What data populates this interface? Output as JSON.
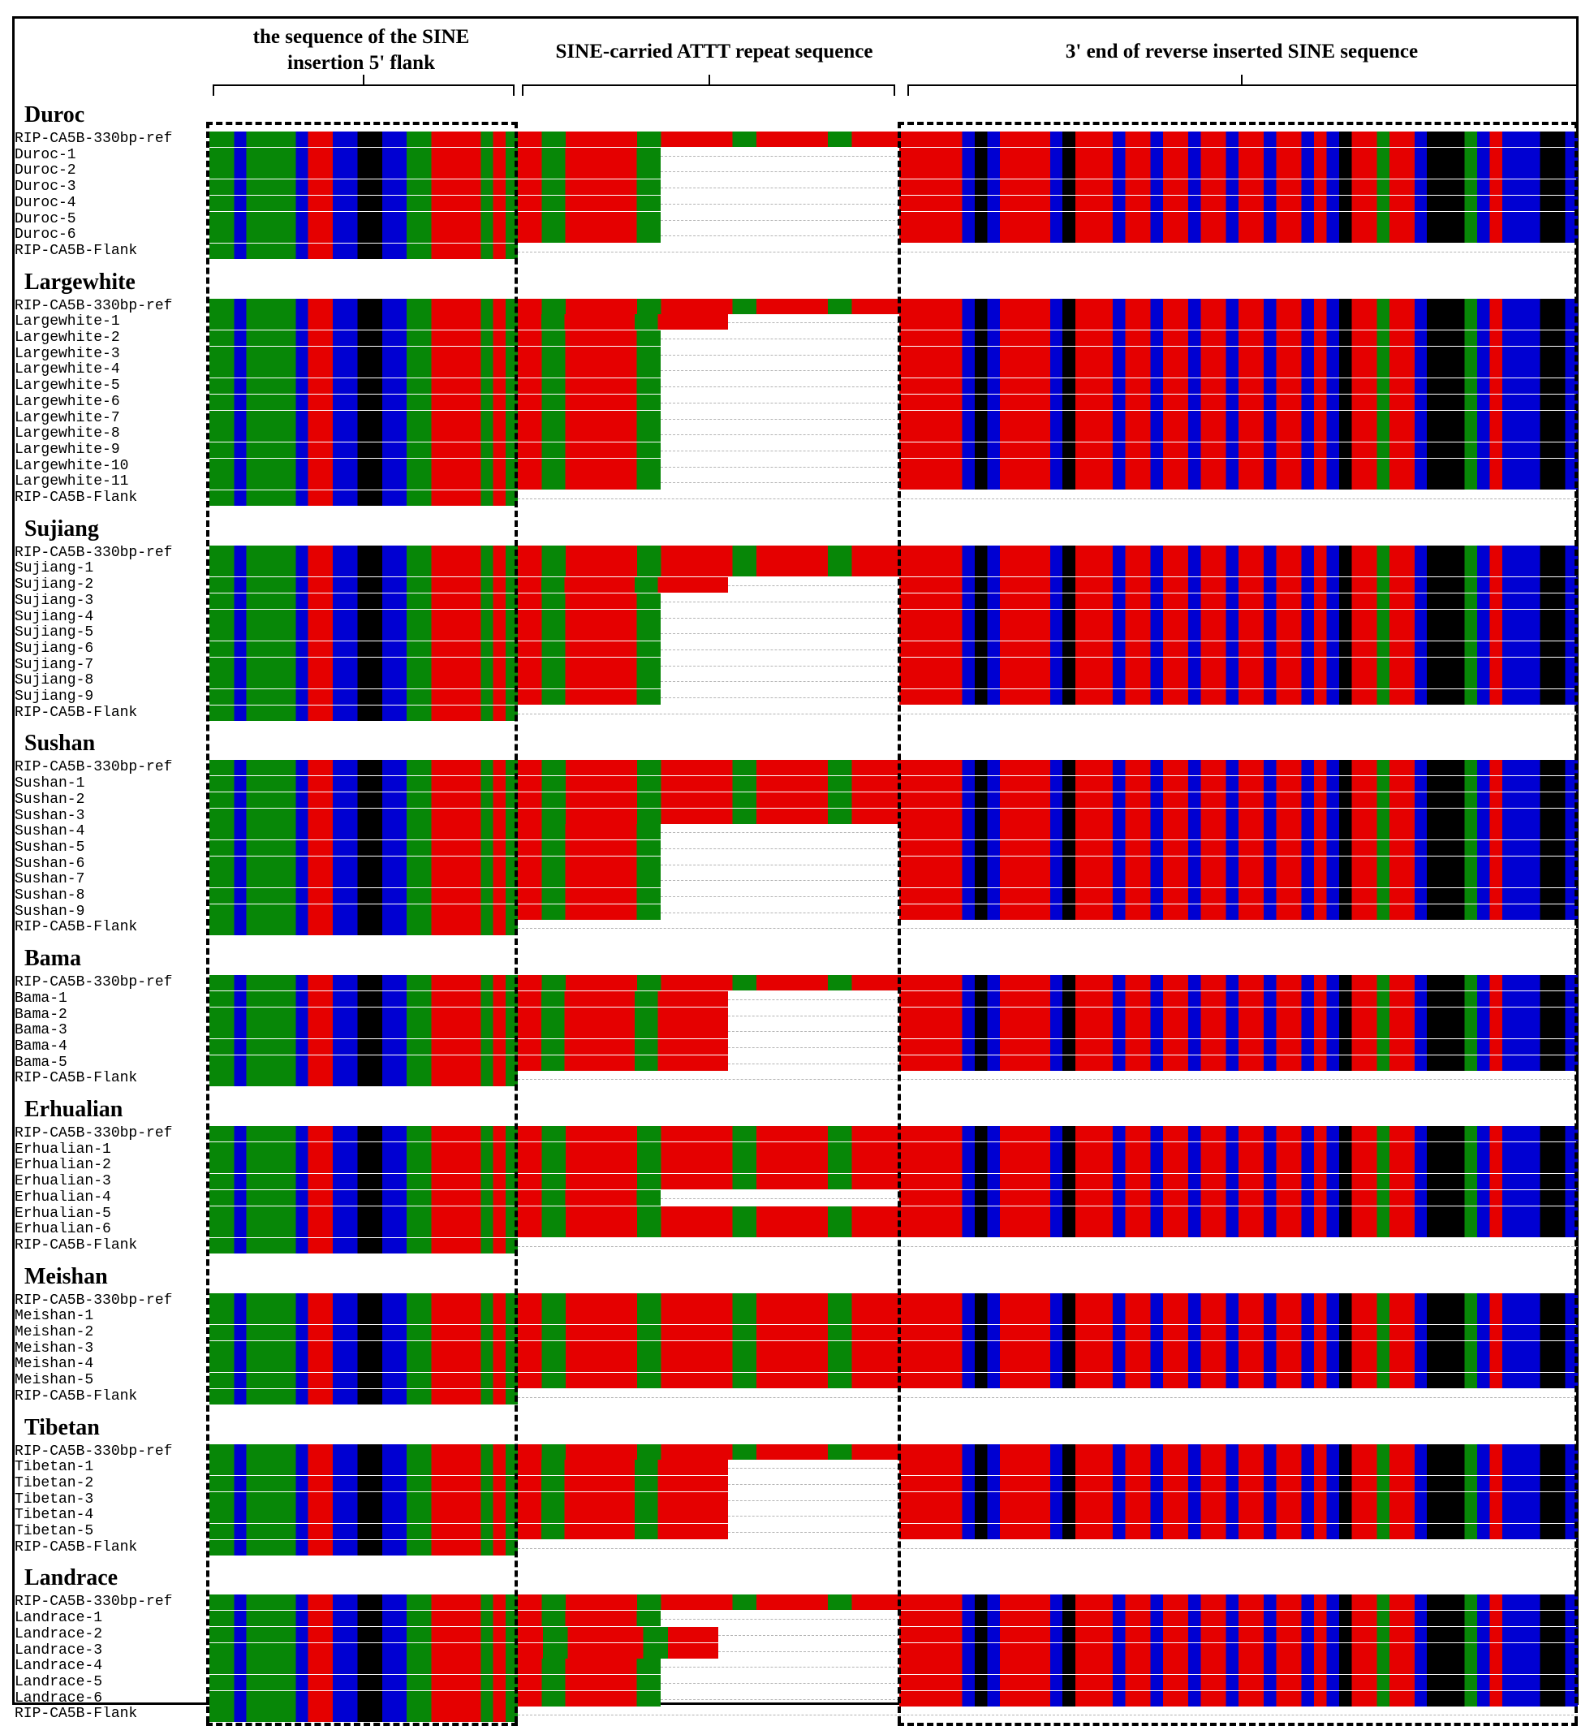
{
  "headers": {
    "flank": "the sequence of the SINE insertion 5' flank",
    "repeat": "SINE-carried ATTT repeat sequence",
    "sine": "3' end of reverse inserted SINE sequence"
  },
  "colors": {
    "A": "#e50000",
    "T": "#e50000",
    "G": "#0000d2",
    "C": "#078707",
    "K": "#000000",
    "gap": "#b4b4b4"
  },
  "groups": [
    {
      "breed": "Duroc",
      "rows": [
        {
          "label": "RIP-CA5B-330bp-ref",
          "repeat": 4,
          "sine": true
        },
        {
          "label": "Duroc-1",
          "repeat": 1.5,
          "sine": true
        },
        {
          "label": "Duroc-2",
          "repeat": 1.5,
          "sine": true
        },
        {
          "label": "Duroc-3",
          "repeat": 1.5,
          "sine": true
        },
        {
          "label": "Duroc-4",
          "repeat": 1.5,
          "sine": true
        },
        {
          "label": "Duroc-5",
          "repeat": 1.5,
          "sine": true
        },
        {
          "label": "Duroc-6",
          "repeat": 1.5,
          "sine": true
        },
        {
          "label": "RIP-CA5B-Flank",
          "repeat": 0,
          "sine": false
        }
      ]
    },
    {
      "breed": "Largewhite",
      "rows": [
        {
          "label": "RIP-CA5B-330bp-ref",
          "repeat": 4,
          "sine": true
        },
        {
          "label": "Largewhite-1",
          "repeat": 2.2,
          "sine": true
        },
        {
          "label": "Largewhite-2",
          "repeat": 1.5,
          "sine": true
        },
        {
          "label": "Largewhite-3",
          "repeat": 1.5,
          "sine": true
        },
        {
          "label": "Largewhite-4",
          "repeat": 1.5,
          "sine": true
        },
        {
          "label": "Largewhite-5",
          "repeat": 1.5,
          "sine": true
        },
        {
          "label": "Largewhite-6",
          "repeat": 1.5,
          "sine": true
        },
        {
          "label": "Largewhite-7",
          "repeat": 1.5,
          "sine": true
        },
        {
          "label": "Largewhite-8",
          "repeat": 1.5,
          "sine": true
        },
        {
          "label": "Largewhite-9",
          "repeat": 1.5,
          "sine": true
        },
        {
          "label": "Largewhite-10",
          "repeat": 1.5,
          "sine": true
        },
        {
          "label": "Largewhite-11",
          "repeat": 1.5,
          "sine": true
        },
        {
          "label": "RIP-CA5B-Flank",
          "repeat": 0,
          "sine": false
        }
      ]
    },
    {
      "breed": "Sujiang",
      "rows": [
        {
          "label": "RIP-CA5B-330bp-ref",
          "repeat": 4,
          "sine": true
        },
        {
          "label": "Sujiang-1",
          "repeat": 4,
          "sine": true
        },
        {
          "label": "Sujiang-2",
          "repeat": 2.2,
          "sine": true
        },
        {
          "label": "Sujiang-3",
          "repeat": 1.5,
          "sine": true
        },
        {
          "label": "Sujiang-4",
          "repeat": 1.5,
          "sine": true
        },
        {
          "label": "Sujiang-5",
          "repeat": 1.5,
          "sine": true
        },
        {
          "label": "Sujiang-6",
          "repeat": 1.5,
          "sine": true
        },
        {
          "label": "Sujiang-7",
          "repeat": 1.5,
          "sine": true
        },
        {
          "label": "Sujiang-8",
          "repeat": 1.5,
          "sine": true
        },
        {
          "label": "Sujiang-9",
          "repeat": 1.5,
          "sine": true
        },
        {
          "label": "RIP-CA5B-Flank",
          "repeat": 0,
          "sine": false
        }
      ]
    },
    {
      "breed": "Sushan",
      "rows": [
        {
          "label": "RIP-CA5B-330bp-ref",
          "repeat": 4,
          "sine": true
        },
        {
          "label": "Sushan-1",
          "repeat": 4,
          "sine": true
        },
        {
          "label": "Sushan-2",
          "repeat": 4,
          "sine": true
        },
        {
          "label": "Sushan-3",
          "repeat": 4,
          "sine": true
        },
        {
          "label": "Sushan-4",
          "repeat": 1.5,
          "sine": true
        },
        {
          "label": "Sushan-5",
          "repeat": 1.5,
          "sine": true
        },
        {
          "label": "Sushan-6",
          "repeat": 1.5,
          "sine": true
        },
        {
          "label": "Sushan-7",
          "repeat": 1.5,
          "sine": true
        },
        {
          "label": "Sushan-8",
          "repeat": 1.5,
          "sine": true
        },
        {
          "label": "Sushan-9",
          "repeat": 1.5,
          "sine": true
        },
        {
          "label": "RIP-CA5B-Flank",
          "repeat": 0,
          "sine": false
        }
      ]
    },
    {
      "breed": "Bama",
      "rows": [
        {
          "label": "RIP-CA5B-330bp-ref",
          "repeat": 4,
          "sine": true
        },
        {
          "label": "Bama-1",
          "repeat": 2.2,
          "sine": true
        },
        {
          "label": "Bama-2",
          "repeat": 2.2,
          "sine": true
        },
        {
          "label": "Bama-3",
          "repeat": 2.2,
          "sine": true
        },
        {
          "label": "Bama-4",
          "repeat": 2.2,
          "sine": true
        },
        {
          "label": "Bama-5",
          "repeat": 2.2,
          "sine": true
        },
        {
          "label": "RIP-CA5B-Flank",
          "repeat": 0,
          "sine": false
        }
      ]
    },
    {
      "breed": "Erhualian",
      "rows": [
        {
          "label": "RIP-CA5B-330bp-ref",
          "repeat": 4,
          "sine": true
        },
        {
          "label": "Erhualian-1",
          "repeat": 4,
          "sine": true
        },
        {
          "label": "Erhualian-2",
          "repeat": 4,
          "sine": true
        },
        {
          "label": "Erhualian-3",
          "repeat": 4,
          "sine": true
        },
        {
          "label": "Erhualian-4",
          "repeat": 1.5,
          "sine": true
        },
        {
          "label": "Erhualian-5",
          "repeat": 4,
          "sine": true
        },
        {
          "label": "Erhualian-6",
          "repeat": 4,
          "sine": true
        },
        {
          "label": "RIP-CA5B-Flank",
          "repeat": 0,
          "sine": false
        }
      ]
    },
    {
      "breed": "Meishan",
      "rows": [
        {
          "label": "RIP-CA5B-330bp-ref",
          "repeat": 4,
          "sine": true
        },
        {
          "label": "Meishan-1",
          "repeat": 4,
          "sine": true
        },
        {
          "label": "Meishan-2",
          "repeat": 4,
          "sine": true
        },
        {
          "label": "Meishan-3",
          "repeat": 4,
          "sine": true
        },
        {
          "label": "Meishan-4",
          "repeat": 4,
          "sine": true
        },
        {
          "label": "Meishan-5",
          "repeat": 4,
          "sine": true
        },
        {
          "label": "RIP-CA5B-Flank",
          "repeat": 0,
          "sine": false
        }
      ]
    },
    {
      "breed": "Tibetan",
      "rows": [
        {
          "label": "RIP-CA5B-330bp-ref",
          "repeat": 4,
          "sine": true
        },
        {
          "label": "Tibetan-1",
          "repeat": 2.2,
          "sine": true
        },
        {
          "label": "Tibetan-2",
          "repeat": 2.2,
          "sine": true
        },
        {
          "label": "Tibetan-3",
          "repeat": 2.2,
          "sine": true
        },
        {
          "label": "Tibetan-4",
          "repeat": 2.2,
          "sine": true
        },
        {
          "label": "Tibetan-5",
          "repeat": 2.2,
          "sine": true
        },
        {
          "label": "RIP-CA5B-Flank",
          "repeat": 0,
          "sine": false
        }
      ]
    },
    {
      "breed": "Landrace",
      "rows": [
        {
          "label": "RIP-CA5B-330bp-ref",
          "repeat": 4,
          "sine": true
        },
        {
          "label": "Landrace-1",
          "repeat": 1.5,
          "sine": true
        },
        {
          "label": "Landrace-2",
          "repeat": 2.1,
          "sine": true
        },
        {
          "label": "Landrace-3",
          "repeat": 2.1,
          "sine": true
        },
        {
          "label": "Landrace-4",
          "repeat": 1.5,
          "sine": true
        },
        {
          "label": "Landrace-5",
          "repeat": 1.5,
          "sine": true
        },
        {
          "label": "Landrace-6",
          "repeat": 1.5,
          "sine": true
        },
        {
          "label": "RIP-CA5B-Flank",
          "repeat": 0,
          "sine": false
        }
      ]
    }
  ]
}
